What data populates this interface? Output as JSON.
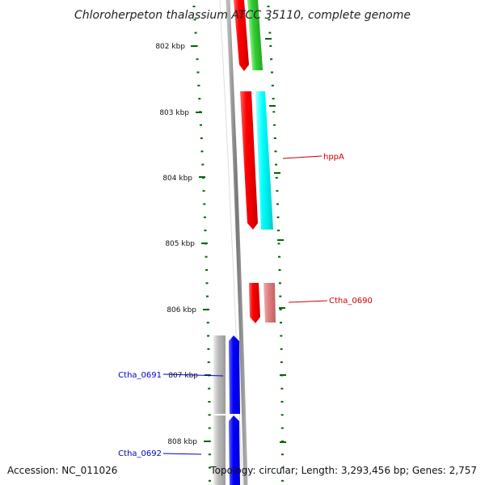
{
  "title": "Chloroherpeton thalassium ATCC 35110, complete genome",
  "ticks": [
    {
      "label": "802 kbp"
    },
    {
      "label": "803 kbp"
    },
    {
      "label": "804 kbp"
    },
    {
      "label": "805 kbp"
    },
    {
      "label": "806 kbp"
    },
    {
      "label": "807 kbp"
    },
    {
      "label": "808 kbp"
    }
  ],
  "gene_labels": [
    {
      "text": "hppA",
      "color": "#cc0000"
    },
    {
      "text": "Ctha_0690",
      "color": "#cc0000"
    },
    {
      "text": "Ctha_0691",
      "color": "#0000cc"
    },
    {
      "text": "Ctha_0692",
      "color": "#0000cc"
    }
  ],
  "colors": {
    "backbone": "#808080",
    "forward_red": "#ff0000",
    "cog_green": "#33cc33",
    "cog_cyan": "#00ffff",
    "cog_pink": "#e08080",
    "reverse_blue": "#0000ff",
    "cog_gray": "#bbbbbb",
    "tick_green": "#006600"
  },
  "footer": {
    "accession": "Accession: NC_011026",
    "topology": "Topology: circular; Length: 3,293,456 bp; Genes: 2,757"
  }
}
